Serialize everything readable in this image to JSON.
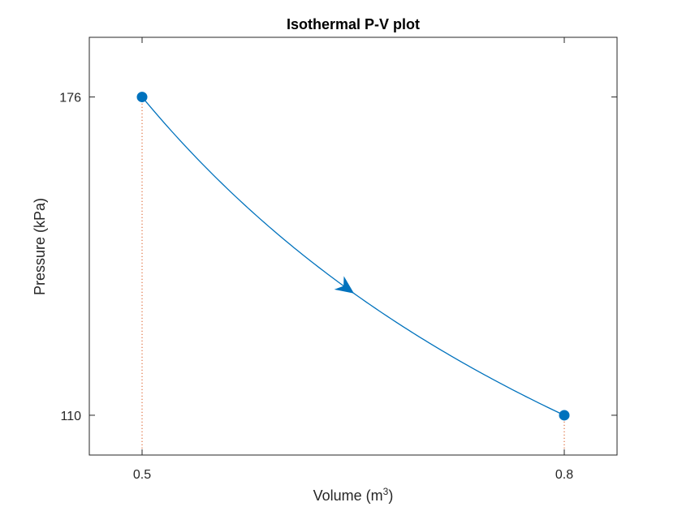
{
  "chart_data": {
    "type": "line",
    "title": "Isothermal P-V plot",
    "xlabel": {
      "base": "Volume  (m",
      "superscript": "3",
      "suffix": ")"
    },
    "ylabel": "Pressure (kPa)",
    "xlim": [
      0.4625,
      0.8375
    ],
    "ylim": [
      101.75,
      188.375
    ],
    "xticks": [
      0.5,
      0.8
    ],
    "xtick_labels": [
      "0.5",
      "0.8"
    ],
    "yticks": [
      110,
      176
    ],
    "ytick_labels": [
      "110",
      "176"
    ],
    "grid": false,
    "series": [
      {
        "color": "#0072BD",
        "relation": "P*V = 88",
        "x_start": 0.5,
        "x_end": 0.8,
        "direction": "increasing volume"
      }
    ],
    "points": [
      {
        "x": 0.5,
        "y": 176,
        "color": "#0072BD"
      },
      {
        "x": 0.8,
        "y": 110,
        "color": "#0072BD"
      }
    ],
    "reference_lines": {
      "color": "#D95319",
      "style": "dotted",
      "x": [
        0.5,
        0.8
      ]
    },
    "arrow": {
      "x": 0.65,
      "y": 135.38,
      "color": "#0072BD"
    }
  }
}
